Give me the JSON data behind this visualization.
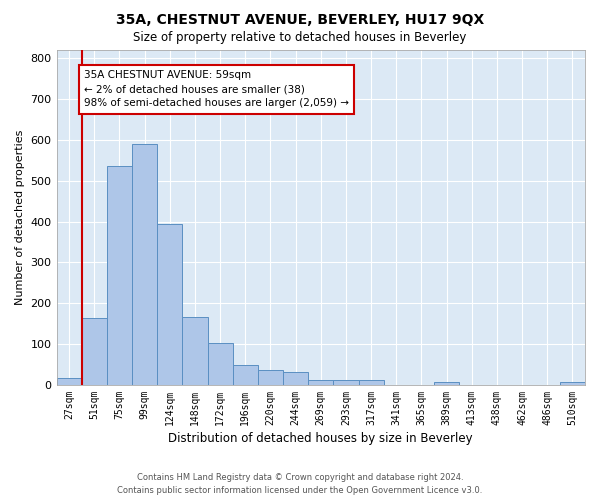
{
  "title": "35A, CHESTNUT AVENUE, BEVERLEY, HU17 9QX",
  "subtitle": "Size of property relative to detached houses in Beverley",
  "xlabel": "Distribution of detached houses by size in Beverley",
  "ylabel": "Number of detached properties",
  "bin_labels": [
    "27sqm",
    "51sqm",
    "75sqm",
    "99sqm",
    "124sqm",
    "148sqm",
    "172sqm",
    "196sqm",
    "220sqm",
    "244sqm",
    "269sqm",
    "293sqm",
    "317sqm",
    "341sqm",
    "365sqm",
    "389sqm",
    "413sqm",
    "438sqm",
    "462sqm",
    "486sqm",
    "510sqm"
  ],
  "bar_values": [
    17,
    163,
    537,
    591,
    393,
    167,
    102,
    49,
    37,
    31,
    13,
    11,
    11,
    0,
    0,
    8,
    0,
    0,
    0,
    0,
    7
  ],
  "bar_color": "#aec6e8",
  "bar_edge_color": "#5a8fc2",
  "marker_bin_index": 1,
  "marker_color": "#cc0000",
  "annotation_text": "35A CHESTNUT AVENUE: 59sqm\n← 2% of detached houses are smaller (38)\n98% of semi-detached houses are larger (2,059) →",
  "annotation_box_color": "#ffffff",
  "annotation_box_edge": "#cc0000",
  "plot_bg_color": "#dce9f5",
  "grid_color": "#ffffff",
  "ylim": [
    0,
    820
  ],
  "yticks": [
    0,
    100,
    200,
    300,
    400,
    500,
    600,
    700,
    800
  ],
  "footer_line1": "Contains HM Land Registry data © Crown copyright and database right 2024.",
  "footer_line2": "Contains public sector information licensed under the Open Government Licence v3.0."
}
